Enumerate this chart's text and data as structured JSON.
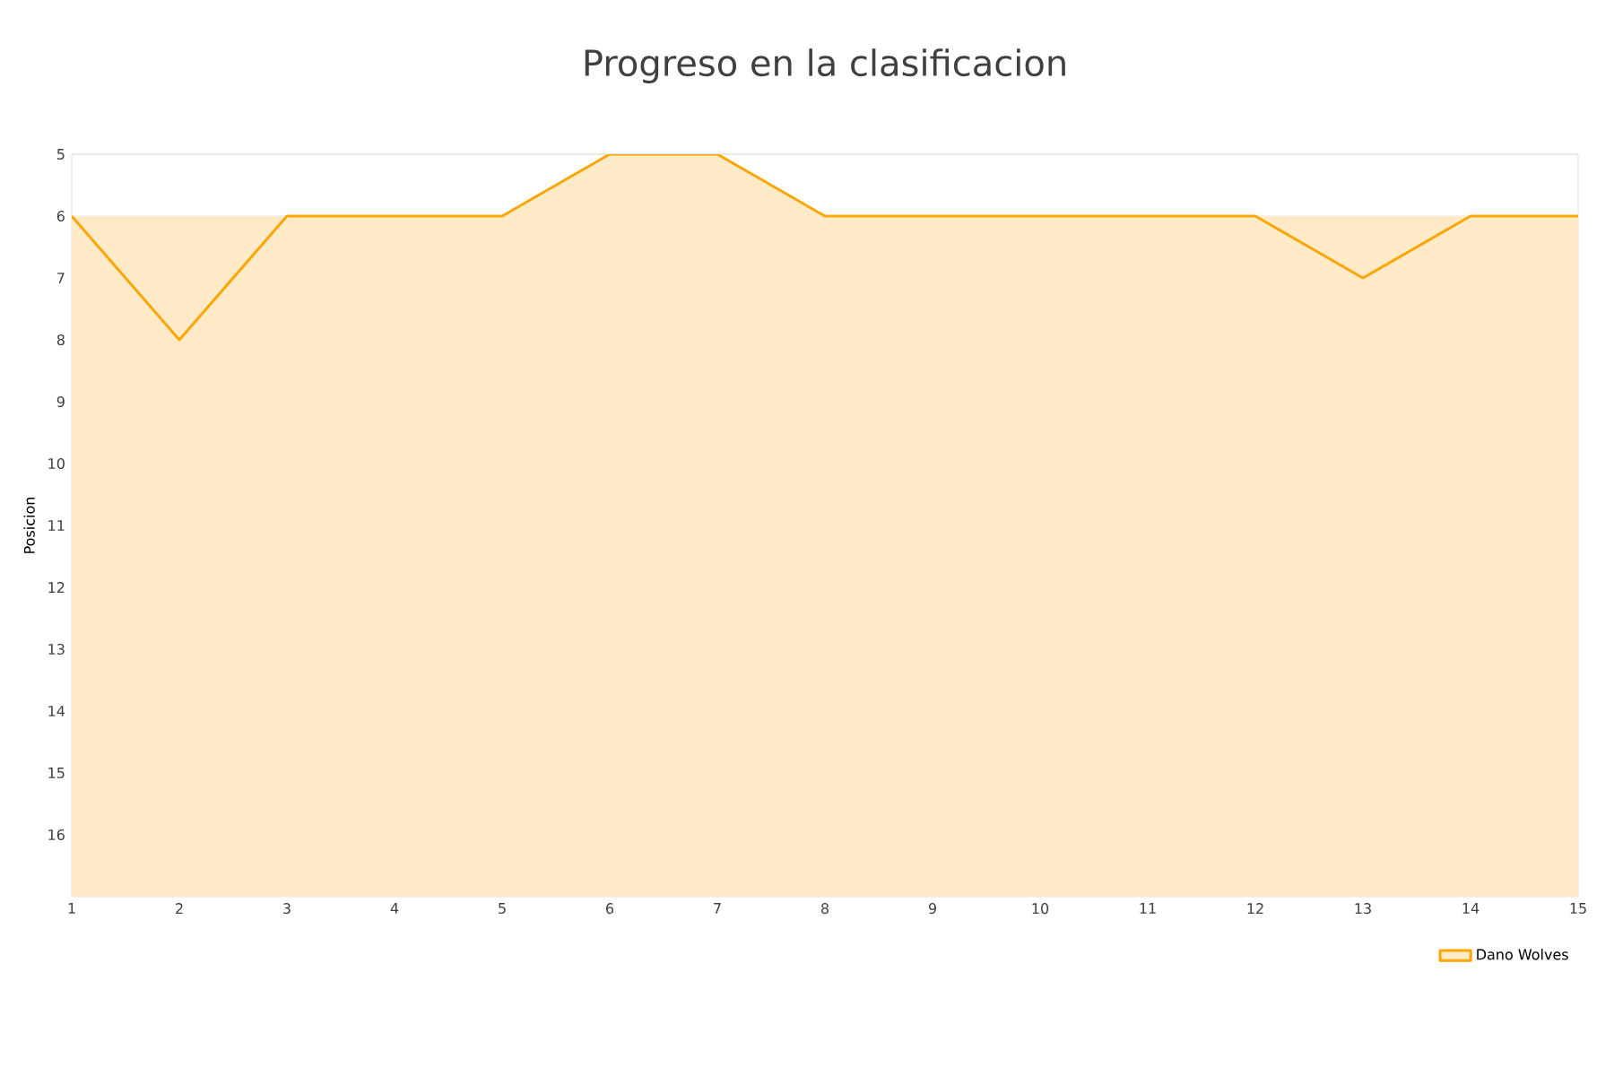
{
  "chart_data": {
    "type": "area",
    "title": "Progreso en la clasificacion",
    "ylabel": "Posicion",
    "x": [
      1,
      2,
      3,
      4,
      5,
      6,
      7,
      8,
      9,
      10,
      11,
      12,
      13,
      14,
      15
    ],
    "series": [
      {
        "name": "Dano Wolves",
        "color": "#ffa500",
        "values": [
          6,
          8,
          6,
          6,
          6,
          5,
          5,
          6,
          6,
          6,
          6,
          6,
          7,
          6,
          6
        ]
      }
    ],
    "xlim": [
      1,
      15
    ],
    "xticks": [
      1,
      2,
      3,
      4,
      5,
      6,
      7,
      8,
      9,
      10,
      11,
      12,
      13,
      14,
      15
    ],
    "ylim": [
      17,
      5
    ],
    "yticks": [
      5,
      6,
      7,
      8,
      9,
      10,
      11,
      12,
      13,
      14,
      15,
      16
    ],
    "grid": "y",
    "legend": "bottom right",
    "marker": "none",
    "line_style": "solid"
  }
}
